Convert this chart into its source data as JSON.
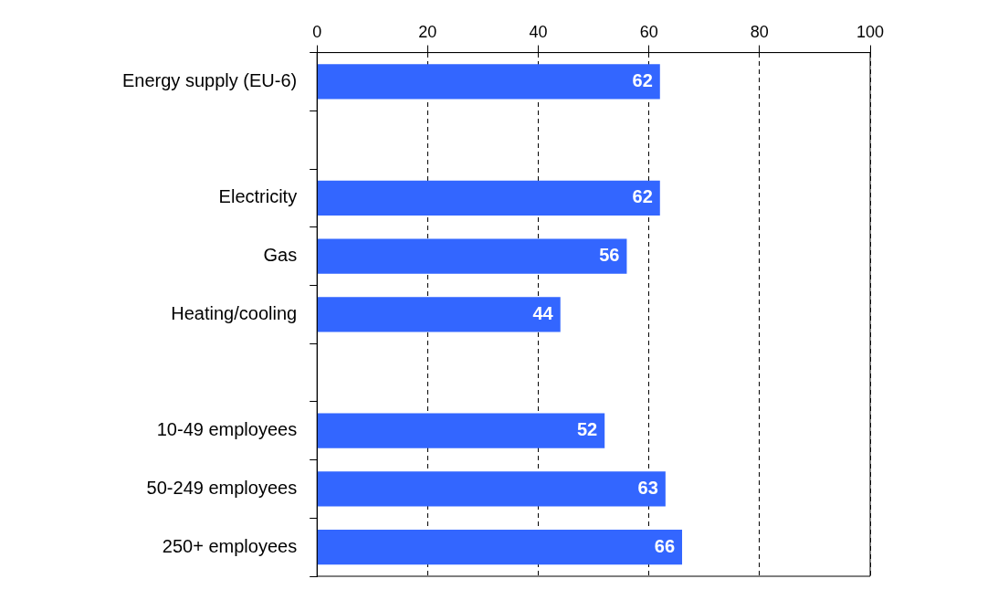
{
  "chart_data": {
    "type": "bar",
    "orientation": "horizontal",
    "categories": [
      "Energy supply (EU-6)",
      null,
      "Electricity",
      "Gas",
      "Heating/cooling",
      null,
      "10-49 employees",
      "50-249 employees",
      "250+ employees"
    ],
    "values": [
      62,
      null,
      62,
      56,
      44,
      null,
      52,
      63,
      66
    ],
    "color": "#3366ff",
    "xlim": [
      0,
      100
    ],
    "xticks": [
      0,
      20,
      40,
      60,
      80,
      100
    ],
    "grid": "x",
    "data_labels": true
  }
}
